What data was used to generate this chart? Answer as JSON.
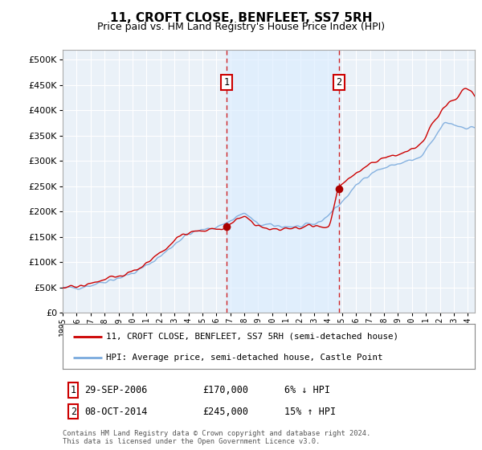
{
  "title": "11, CROFT CLOSE, BENFLEET, SS7 5RH",
  "subtitle": "Price paid vs. HM Land Registry's House Price Index (HPI)",
  "ytick_values": [
    0,
    50000,
    100000,
    150000,
    200000,
    250000,
    300000,
    350000,
    400000,
    450000,
    500000
  ],
  "ylim": [
    0,
    520000
  ],
  "xlim_start": 1995.0,
  "xlim_end": 2024.5,
  "purchase1_x": 2006.75,
  "purchase1_y": 170000,
  "purchase2_x": 2014.77,
  "purchase2_y": 245000,
  "purchase1_label": "1",
  "purchase2_label": "2",
  "red_line_color": "#cc0000",
  "blue_line_color": "#7aaadd",
  "shade_color": "#ddeeff",
  "vline_color": "#cc0000",
  "dot_color": "#aa0000",
  "box_color": "#cc0000",
  "legend1": "11, CROFT CLOSE, BENFLEET, SS7 5RH (semi-detached house)",
  "legend2": "HPI: Average price, semi-detached house, Castle Point",
  "note1_date": "29-SEP-2006",
  "note1_price": "£170,000",
  "note1_change": "6% ↓ HPI",
  "note2_date": "08-OCT-2014",
  "note2_price": "£245,000",
  "note2_change": "15% ↑ HPI",
  "footer": "Contains HM Land Registry data © Crown copyright and database right 2024.\nThis data is licensed under the Open Government Licence v3.0.",
  "plot_bg": "#eaf1f8",
  "grid_color": "#ffffff"
}
